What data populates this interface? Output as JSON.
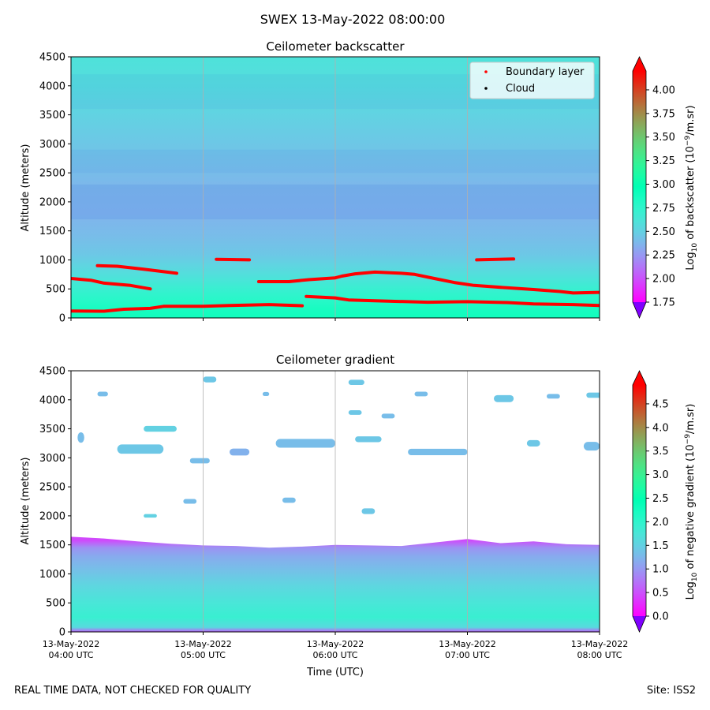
{
  "figure": {
    "title": "SWEX 13-May-2022 08:00:00",
    "footer_left": "REAL TIME DATA, NOT CHECKED FOR QUALITY",
    "footer_right": "Site: ISS2"
  },
  "colors": {
    "colormap": "rainbow",
    "boundary_layer": "#ff0000",
    "cloud": "#000000",
    "gridline": "#b0b0b0"
  },
  "chart_data": [
    {
      "type": "heatmap",
      "title": "Ceilometer backscatter",
      "xlabel": "",
      "ylabel": "Altitude (meters)",
      "x_range": [
        "2022-05-13T04:00Z",
        "2022-05-13T08:00Z"
      ],
      "x_ticks": [
        {
          "time": "04:00",
          "label": [
            "",
            ""
          ]
        },
        {
          "time": "05:00",
          "label": [
            "",
            ""
          ]
        },
        {
          "time": "06:00",
          "label": [
            "",
            ""
          ]
        },
        {
          "time": "07:00",
          "label": [
            "",
            ""
          ]
        },
        {
          "time": "08:00",
          "label": [
            "",
            ""
          ]
        }
      ],
      "ylim": [
        0,
        4500
      ],
      "y_ticks": [
        0,
        500,
        1000,
        1500,
        2000,
        2500,
        3000,
        3500,
        4000,
        4500
      ],
      "grid": "vertical",
      "legend": {
        "position": "top-right",
        "entries": [
          {
            "label": "Boundary layer",
            "color": "#ff0000"
          },
          {
            "label": "Cloud",
            "color": "#000000"
          }
        ]
      },
      "colorbar": {
        "label_prefix": "Log",
        "label_sub": "10",
        "label_mid": " of backscatter (10",
        "label_sup": "−9",
        "label_suffix": "/m.sr)",
        "range": [
          1.75,
          4.2
        ],
        "ticks": [
          "1.75",
          "2.00",
          "2.25",
          "2.50",
          "2.75",
          "3.00",
          "3.25",
          "3.50",
          "3.75",
          "4.00"
        ],
        "extend": "both"
      },
      "field_profile": [
        {
          "altitude": 0,
          "value": 2.9
        },
        {
          "altitude": 150,
          "value": 2.86
        },
        {
          "altitude": 300,
          "value": 2.79
        },
        {
          "altitude": 500,
          "value": 2.7
        },
        {
          "altitude": 700,
          "value": 2.6
        },
        {
          "altitude": 900,
          "value": 2.52
        },
        {
          "altitude": 1100,
          "value": 2.45
        },
        {
          "altitude": 1400,
          "value": 2.4
        },
        {
          "altitude": 1800,
          "value": 2.36
        },
        {
          "altitude": 2300,
          "value": 2.38
        },
        {
          "altitude": 3000,
          "value": 2.45
        },
        {
          "altitude": 3600,
          "value": 2.52
        },
        {
          "altitude": 4000,
          "value": 2.56
        },
        {
          "altitude": 4500,
          "value": 2.6
        }
      ],
      "boundary_layer_segments": [
        [
          [
            4.0,
            120
          ],
          [
            4.25,
            115
          ],
          [
            4.4,
            150
          ],
          [
            4.6,
            165
          ],
          [
            4.7,
            200
          ],
          [
            5.0,
            200
          ],
          [
            5.2,
            215
          ],
          [
            5.5,
            230
          ],
          [
            5.75,
            210
          ]
        ],
        [
          [
            4.0,
            680
          ],
          [
            4.15,
            650
          ],
          [
            4.25,
            600
          ],
          [
            4.45,
            560
          ],
          [
            4.6,
            500
          ]
        ],
        [
          [
            4.2,
            900
          ],
          [
            4.35,
            890
          ],
          [
            4.55,
            840
          ],
          [
            4.8,
            770
          ]
        ],
        [
          [
            5.1,
            1010
          ],
          [
            5.35,
            1000
          ]
        ],
        [
          [
            5.42,
            625
          ],
          [
            5.65,
            625
          ],
          [
            5.8,
            660
          ],
          [
            6.0,
            690
          ],
          [
            6.05,
            720
          ],
          [
            6.15,
            760
          ],
          [
            6.3,
            790
          ],
          [
            6.5,
            770
          ],
          [
            6.6,
            750
          ],
          [
            6.75,
            680
          ],
          [
            6.9,
            610
          ],
          [
            7.05,
            560
          ],
          [
            7.3,
            520
          ],
          [
            7.5,
            490
          ],
          [
            7.7,
            455
          ],
          [
            7.8,
            430
          ],
          [
            8.0,
            440
          ]
        ],
        [
          [
            5.78,
            370
          ],
          [
            6.0,
            345
          ],
          [
            6.1,
            310
          ],
          [
            6.3,
            295
          ],
          [
            6.7,
            270
          ],
          [
            7.0,
            280
          ],
          [
            7.3,
            265
          ],
          [
            7.5,
            240
          ],
          [
            7.8,
            230
          ],
          [
            8.0,
            215
          ]
        ],
        [
          [
            7.07,
            1000
          ],
          [
            7.35,
            1015
          ]
        ]
      ]
    },
    {
      "type": "heatmap",
      "title": "Ceilometer gradient",
      "xlabel": "Time (UTC)",
      "ylabel": "Altitude (meters)",
      "x_range": [
        "2022-05-13T04:00Z",
        "2022-05-13T08:00Z"
      ],
      "x_ticks": [
        {
          "time": "04:00",
          "label": [
            "13-May-2022",
            "04:00 UTC"
          ]
        },
        {
          "time": "05:00",
          "label": [
            "13-May-2022",
            "05:00 UTC"
          ]
        },
        {
          "time": "06:00",
          "label": [
            "13-May-2022",
            "06:00 UTC"
          ]
        },
        {
          "time": "07:00",
          "label": [
            "13-May-2022",
            "07:00 UTC"
          ]
        },
        {
          "time": "08:00",
          "label": [
            "13-May-2022",
            "08:00 UTC"
          ]
        }
      ],
      "ylim": [
        0,
        4500
      ],
      "y_ticks": [
        0,
        500,
        1000,
        1500,
        2000,
        2500,
        3000,
        3500,
        4000,
        4500
      ],
      "grid": "vertical",
      "colorbar": {
        "label_prefix": "Log",
        "label_sub": "10",
        "label_mid": " of negative gradient (10",
        "label_sup": "−9",
        "label_suffix": "/m.sr)",
        "range": [
          0.0,
          4.9
        ],
        "ticks": [
          "0.0",
          "0.5",
          "1.0",
          "1.5",
          "2.0",
          "2.5",
          "3.0",
          "3.5",
          "4.0",
          "4.5"
        ],
        "extend": "both"
      },
      "layer_profile": [
        {
          "altitude": 0,
          "value": 0.6
        },
        {
          "altitude": 80,
          "value": 1.6
        },
        {
          "altitude": 250,
          "value": 1.9
        },
        {
          "altitude": 500,
          "value": 1.75
        },
        {
          "altitude": 800,
          "value": 1.55
        },
        {
          "altitude": 1100,
          "value": 1.3
        },
        {
          "altitude": 1300,
          "value": 1.15
        },
        {
          "altitude": 1450,
          "value": 0.95
        },
        {
          "altitude": 1580,
          "value": 0.45
        }
      ],
      "layer_top": [
        [
          4.0,
          1640
        ],
        [
          4.25,
          1610
        ],
        [
          4.5,
          1560
        ],
        [
          4.75,
          1520
        ],
        [
          5.0,
          1490
        ],
        [
          5.25,
          1480
        ],
        [
          5.5,
          1450
        ],
        [
          5.75,
          1470
        ],
        [
          6.0,
          1500
        ],
        [
          6.25,
          1490
        ],
        [
          6.5,
          1480
        ],
        [
          6.75,
          1540
        ],
        [
          7.0,
          1600
        ],
        [
          7.25,
          1530
        ],
        [
          7.5,
          1560
        ],
        [
          7.75,
          1510
        ],
        [
          8.0,
          1500
        ]
      ],
      "upper_patches": [
        [
          4.05,
          3350,
          0.05,
          180,
          1.3
        ],
        [
          4.35,
          3150,
          0.35,
          160,
          1.4
        ],
        [
          4.55,
          3500,
          0.25,
          100,
          1.5
        ],
        [
          4.9,
          2950,
          0.15,
          90,
          1.3
        ],
        [
          5.2,
          3100,
          0.15,
          120,
          1.2
        ],
        [
          5.55,
          3250,
          0.45,
          150,
          1.3
        ],
        [
          6.15,
          3320,
          0.2,
          100,
          1.4
        ],
        [
          6.55,
          3100,
          0.45,
          110,
          1.3
        ],
        [
          7.45,
          3250,
          0.1,
          110,
          1.4
        ],
        [
          7.88,
          3200,
          0.12,
          150,
          1.3
        ],
        [
          4.85,
          2250,
          0.1,
          80,
          1.3
        ],
        [
          5.6,
          2270,
          0.1,
          90,
          1.3
        ],
        [
          6.2,
          2080,
          0.1,
          100,
          1.4
        ],
        [
          6.1,
          3780,
          0.1,
          80,
          1.4
        ],
        [
          6.35,
          3720,
          0.1,
          80,
          1.3
        ],
        [
          6.1,
          4300,
          0.12,
          90,
          1.4
        ],
        [
          6.6,
          4100,
          0.1,
          80,
          1.3
        ],
        [
          7.2,
          4020,
          0.15,
          120,
          1.4
        ],
        [
          7.6,
          4060,
          0.1,
          80,
          1.3
        ],
        [
          7.9,
          4080,
          0.12,
          90,
          1.4
        ],
        [
          4.2,
          4100,
          0.08,
          80,
          1.3
        ],
        [
          5.0,
          4350,
          0.1,
          100,
          1.4
        ],
        [
          5.45,
          4100,
          0.05,
          70,
          1.3
        ],
        [
          4.55,
          2000,
          0.1,
          60,
          1.5
        ]
      ]
    }
  ]
}
